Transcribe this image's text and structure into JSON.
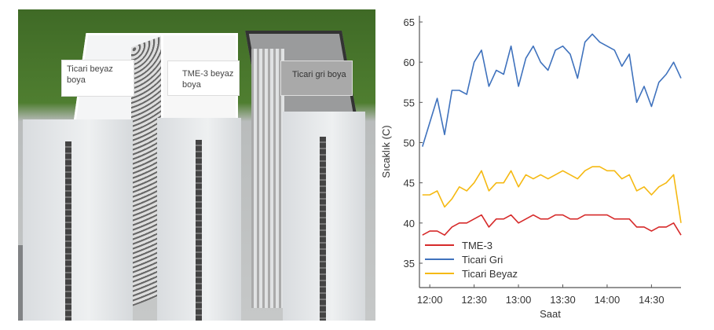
{
  "photo": {
    "labels": [
      "Ticari beyaz boya",
      "TME-3 beyaz boya",
      "Ticari gri boya"
    ]
  },
  "chart_data": {
    "type": "line",
    "xlabel": "Saat",
    "ylabel": "Sıcaklık (C)",
    "ylim": [
      32,
      65
    ],
    "yticks": [
      "35",
      "40",
      "45",
      "50",
      "55",
      "60",
      "65"
    ],
    "xticks": [
      "12:00",
      "12:30",
      "13:00",
      "13:30",
      "14:00",
      "14:30"
    ],
    "xlim": [
      "11:53",
      "14:50"
    ],
    "legend_position": "bottom-left",
    "grid": false,
    "x": [
      "11:55",
      "12:00",
      "12:05",
      "12:10",
      "12:15",
      "12:20",
      "12:25",
      "12:30",
      "12:35",
      "12:40",
      "12:45",
      "12:50",
      "12:55",
      "13:00",
      "13:05",
      "13:10",
      "13:15",
      "13:20",
      "13:25",
      "13:30",
      "13:35",
      "13:40",
      "13:45",
      "13:50",
      "13:55",
      "14:00",
      "14:05",
      "14:10",
      "14:15",
      "14:20",
      "14:25",
      "14:30",
      "14:35",
      "14:40",
      "14:45",
      "14:50"
    ],
    "series": [
      {
        "name": "TME-3",
        "color": "#d62a2a",
        "values": [
          38.5,
          39,
          39,
          38.5,
          39.5,
          40,
          40,
          40.5,
          41,
          39.5,
          40.5,
          40.5,
          41,
          40,
          40.5,
          41,
          40.5,
          40.5,
          41,
          41,
          40.5,
          40.5,
          41,
          41,
          41,
          41,
          40.5,
          40.5,
          40.5,
          39.5,
          39.5,
          39,
          39.5,
          39.5,
          40,
          38.5
        ]
      },
      {
        "name": "Ticari Gri",
        "color": "#3f72bd",
        "values": [
          49.5,
          52.5,
          55.5,
          51,
          56.5,
          56.5,
          56,
          60,
          61.5,
          57,
          59,
          58.5,
          62,
          57,
          60.5,
          62,
          60,
          59,
          61.5,
          62,
          61,
          58,
          62.5,
          63.5,
          62.5,
          62,
          61.5,
          59.5,
          61,
          55,
          57,
          54.5,
          57.5,
          58.5,
          60,
          58
        ]
      },
      {
        "name": "Ticari Beyaz",
        "color": "#f5b912",
        "values": [
          43.5,
          43.5,
          44,
          42,
          43,
          44.5,
          44,
          45,
          46.5,
          44,
          45,
          45,
          46.5,
          44.5,
          46,
          45.5,
          46,
          45.5,
          46,
          46.5,
          46,
          45.5,
          46.5,
          47,
          47,
          46.5,
          46.5,
          45.5,
          46,
          44,
          44.5,
          43.5,
          44.5,
          45,
          46,
          40
        ]
      }
    ]
  }
}
